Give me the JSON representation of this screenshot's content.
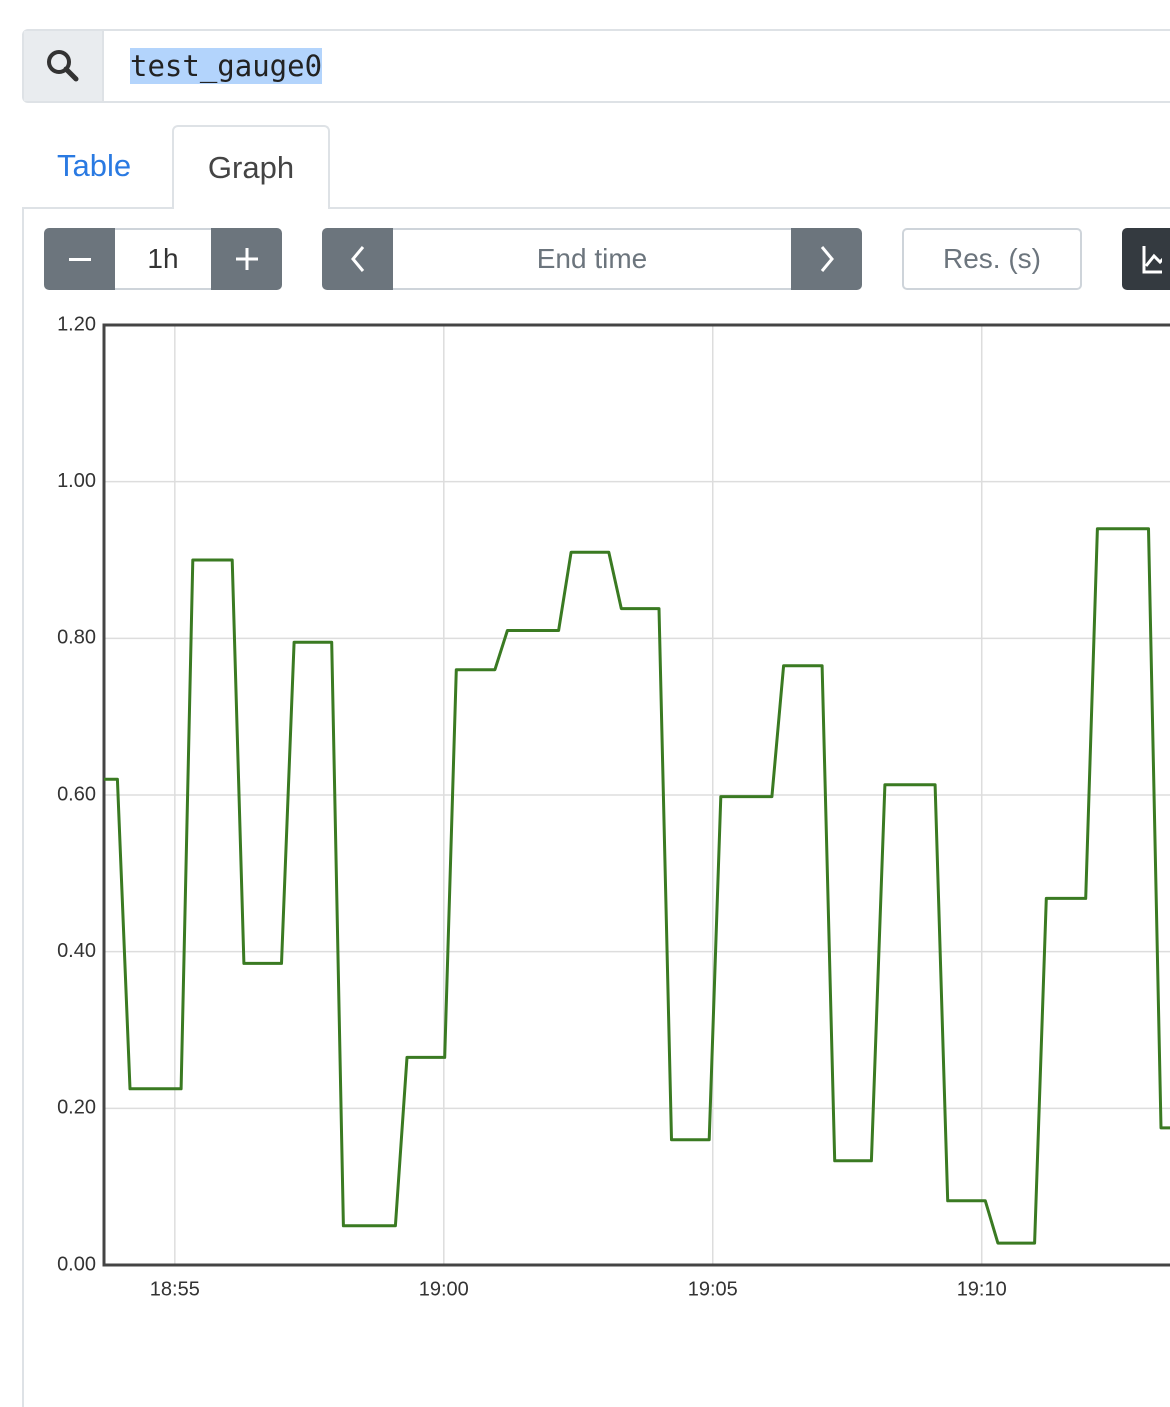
{
  "search": {
    "query": "test_gauge0"
  },
  "tabs": [
    "Table",
    "Graph"
  ],
  "controls": {
    "range": "1h",
    "end_time": "End time",
    "resolution": "Res. (s)"
  },
  "chart_data": {
    "type": "line",
    "color": "#3a7a22",
    "grid": true,
    "x": [
      "18:53:41",
      "18:53:56",
      "18:54:10",
      "18:55:07",
      "18:55:20",
      "18:56:04",
      "18:56:17",
      "18:56:59",
      "18:57:13",
      "18:57:55",
      "18:58:08",
      "18:59:06",
      "18:59:19",
      "19:00:01",
      "19:00:14",
      "19:00:57",
      "19:01:11",
      "19:02:08",
      "19:02:22",
      "19:03:04",
      "19:03:18",
      "19:04:00",
      "19:04:14",
      "19:04:56",
      "19:05:09",
      "19:06:06",
      "19:06:19",
      "19:07:02",
      "19:07:16",
      "19:07:57",
      "19:08:12",
      "19:09:08",
      "19:09:22",
      "19:10:04",
      "19:10:18",
      "19:10:59",
      "19:11:12",
      "19:11:56",
      "19:12:09",
      "19:13:06",
      "19:13:20",
      "19:13:30"
    ],
    "values": [
      0.62,
      0.62,
      0.225,
      0.225,
      0.9,
      0.9,
      0.385,
      0.385,
      0.795,
      0.795,
      0.05,
      0.05,
      0.265,
      0.265,
      0.76,
      0.76,
      0.81,
      0.81,
      0.91,
      0.91,
      0.838,
      0.838,
      0.16,
      0.16,
      0.598,
      0.598,
      0.765,
      0.765,
      0.133,
      0.133,
      0.613,
      0.613,
      0.082,
      0.082,
      0.028,
      0.028,
      0.468,
      0.468,
      0.94,
      0.94,
      0.175,
      0.175
    ],
    "xlim": [
      "18:53:41",
      "19:13:30"
    ],
    "xticks": [
      "18:55",
      "19:00",
      "19:05",
      "19:10"
    ],
    "ylim": [
      0,
      1.2
    ],
    "yticks": [
      {
        "value": 0,
        "label": "0.00"
      },
      {
        "value": 0.2,
        "label": "0.20"
      },
      {
        "value": 0.4,
        "label": "0.40"
      },
      {
        "value": 0.6,
        "label": "0.60"
      },
      {
        "value": 0.8,
        "label": "0.80"
      },
      {
        "value": 1,
        "label": "1.00"
      },
      {
        "value": 1.2,
        "label": "1.20"
      }
    ]
  }
}
